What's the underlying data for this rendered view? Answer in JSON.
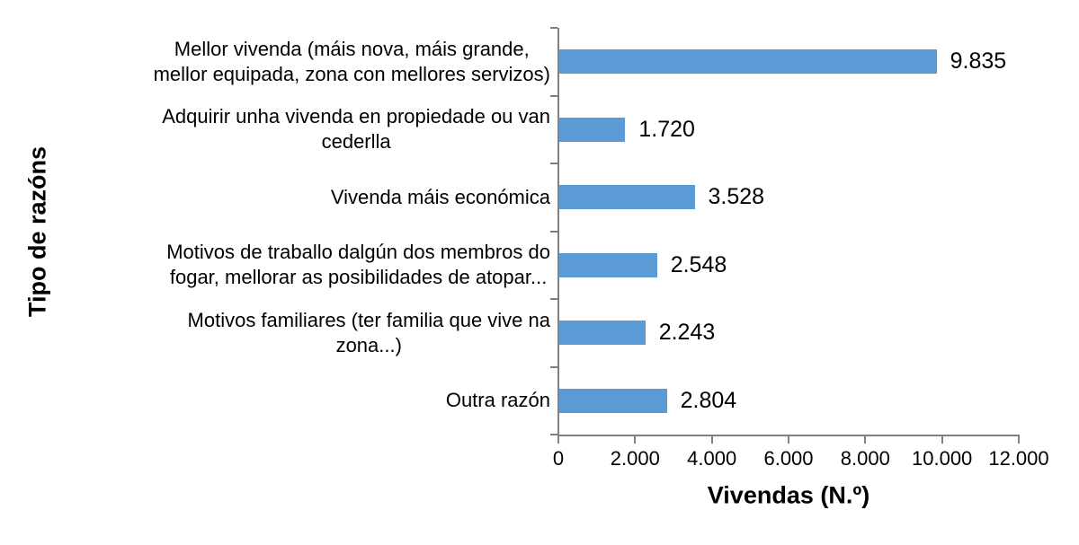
{
  "chart_data": {
    "type": "bar",
    "orientation": "horizontal",
    "title": "",
    "ylabel": "Tipo de razóns",
    "xlabel": "Vivendas (N.º)",
    "categories": [
      "Mellor vivenda (máis nova, máis grande,\nmellor equipada, zona con mellores servizos)",
      "Adquirir unha vivenda en propiedade ou van\ncederlla",
      "Vivenda máis económica",
      "Motivos de traballo dalgún dos membros do\nfogar, mellorar as posibilidades de atopar...",
      "Motivos familiares (ter familia que vive na\nzona...)",
      "Outra razón"
    ],
    "values": [
      9835,
      1720,
      3528,
      2548,
      2243,
      2804
    ],
    "value_labels": [
      "9.835",
      "1.720",
      "3.528",
      "2.548",
      "2.243",
      "2.804"
    ],
    "xlim": [
      0,
      12000
    ],
    "x_ticks": [
      0,
      2000,
      4000,
      6000,
      8000,
      10000,
      12000
    ],
    "x_tick_labels": [
      "0",
      "2.000",
      "4.000",
      "6.000",
      "8.000",
      "10.000",
      "12.000"
    ],
    "grid": false,
    "legend": null,
    "colors": {
      "bar": "#5B9BD5",
      "axis": "#808080",
      "text": "#000000",
      "background": "#FFFFFF"
    }
  }
}
